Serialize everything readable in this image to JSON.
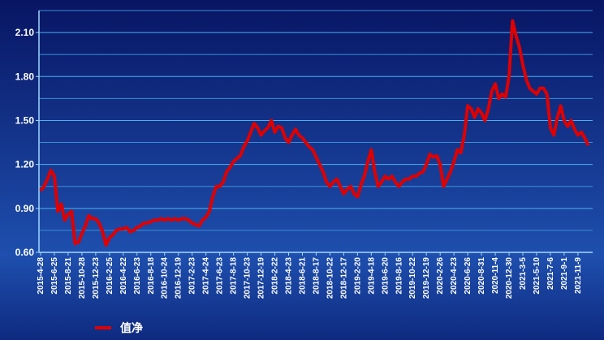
{
  "chart_data": {
    "type": "line",
    "categories": [
      "2015-4-28",
      null,
      null,
      null,
      "2015-6-25",
      null,
      null,
      null,
      "2015-8-21",
      null,
      null,
      null,
      "2015-10-28",
      null,
      null,
      null,
      "2015-12-23",
      null,
      null,
      null,
      "2016-2-25",
      null,
      null,
      null,
      "2016-4-22",
      null,
      null,
      null,
      "2016-6-23",
      null,
      null,
      null,
      "2016-8-18",
      null,
      null,
      null,
      "2016-10-24",
      null,
      null,
      null,
      "2016-12-19",
      null,
      null,
      null,
      "2017-2-23",
      null,
      null,
      null,
      "2017-4-24",
      null,
      null,
      null,
      "2017-6-23",
      null,
      null,
      null,
      "2017-8-18",
      null,
      null,
      null,
      "2017-10-23",
      null,
      null,
      null,
      "2017-12-19",
      null,
      null,
      null,
      "2018-2-22",
      null,
      null,
      null,
      "2018-4-23",
      null,
      null,
      null,
      "2018-6-21",
      null,
      null,
      null,
      "2018-8-17",
      null,
      null,
      null,
      "2018-10-22",
      null,
      null,
      null,
      "2018-12-17",
      null,
      null,
      null,
      "2019-2-20",
      null,
      null,
      null,
      "2019-4-18",
      null,
      null,
      null,
      "2019-6-20",
      null,
      null,
      null,
      "2019-8-16",
      null,
      null,
      null,
      "2019-10-22",
      null,
      null,
      null,
      "2019-12-19",
      null,
      null,
      null,
      "2020-2-26",
      null,
      null,
      null,
      "2020-4-23",
      null,
      null,
      null,
      "2020-6-26",
      null,
      null,
      null,
      "2020-8-31",
      null,
      null,
      null,
      "2020-11-4",
      null,
      null,
      null,
      "2020-12-30",
      null,
      null,
      null,
      "2021-3-5",
      null,
      null,
      null,
      "2021-5-10",
      null,
      null,
      null,
      "2021-7-6",
      null,
      null,
      null,
      "2021-9-1",
      null,
      null,
      null,
      "2021-11-9",
      null,
      null,
      null
    ],
    "series": [
      {
        "name": "值净",
        "color": "#e00000",
        "values": [
          1.02,
          1.05,
          1.1,
          1.16,
          1.12,
          0.88,
          0.93,
          0.82,
          0.86,
          0.88,
          0.66,
          0.67,
          0.73,
          0.78,
          0.85,
          0.83,
          0.83,
          0.8,
          0.74,
          0.65,
          0.7,
          0.72,
          0.75,
          0.76,
          0.76,
          0.77,
          0.74,
          0.75,
          0.77,
          0.78,
          0.8,
          0.8,
          0.81,
          0.82,
          0.82,
          0.83,
          0.82,
          0.83,
          0.82,
          0.83,
          0.82,
          0.83,
          0.83,
          0.82,
          0.8,
          0.79,
          0.78,
          0.82,
          0.84,
          0.88,
          0.98,
          1.05,
          1.05,
          1.08,
          1.15,
          1.18,
          1.22,
          1.24,
          1.26,
          1.32,
          1.36,
          1.42,
          1.48,
          1.45,
          1.4,
          1.43,
          1.45,
          1.5,
          1.42,
          1.46,
          1.45,
          1.38,
          1.35,
          1.4,
          1.44,
          1.4,
          1.38,
          1.35,
          1.32,
          1.3,
          1.25,
          1.2,
          1.15,
          1.08,
          1.05,
          1.08,
          1.1,
          1.05,
          1.0,
          1.03,
          1.05,
          1.0,
          0.98,
          1.06,
          1.12,
          1.22,
          1.3,
          1.15,
          1.05,
          1.08,
          1.12,
          1.1,
          1.12,
          1.08,
          1.05,
          1.08,
          1.1,
          1.1,
          1.12,
          1.12,
          1.14,
          1.15,
          1.2,
          1.27,
          1.25,
          1.26,
          1.2,
          1.05,
          1.1,
          1.15,
          1.22,
          1.3,
          1.28,
          1.4,
          1.6,
          1.58,
          1.52,
          1.58,
          1.55,
          1.5,
          1.58,
          1.7,
          1.75,
          1.65,
          1.68,
          1.66,
          1.8,
          2.18,
          2.08,
          2.0,
          1.88,
          1.78,
          1.72,
          1.7,
          1.68,
          1.72,
          1.72,
          1.68,
          1.45,
          1.4,
          1.52,
          1.6,
          1.5,
          1.46,
          1.5,
          1.44,
          1.4,
          1.42,
          1.38,
          1.33
        ]
      }
    ],
    "ylim": [
      0.6,
      2.25
    ],
    "yticks": [
      {
        "value": 0.6,
        "label": "0.60"
      },
      {
        "value": 0.9,
        "label": "0.90"
      },
      {
        "value": 1.2,
        "label": "1.20"
      },
      {
        "value": 1.5,
        "label": "1.50"
      },
      {
        "value": 1.8,
        "label": "1.80"
      },
      {
        "value": 2.1,
        "label": "2.10"
      }
    ],
    "minor_yticks": [
      0.75,
      1.05,
      1.35,
      1.65,
      1.95,
      2.25
    ],
    "grid": true,
    "legend": "bottom-left"
  }
}
